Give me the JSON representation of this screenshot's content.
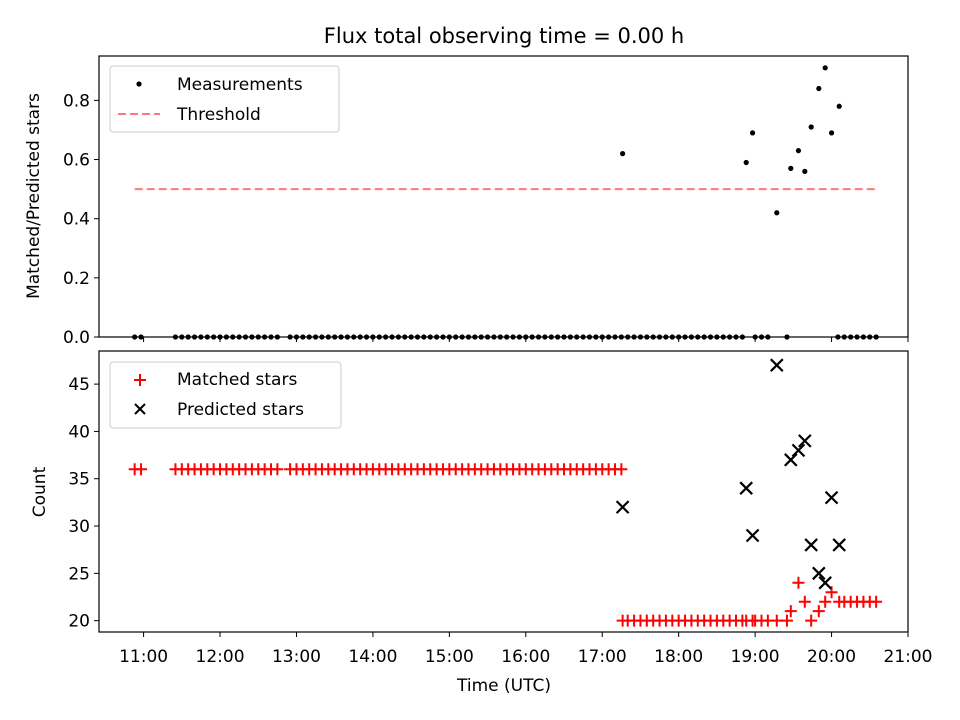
{
  "chart_data": [
    {
      "type": "scatter",
      "title": "Flux total observing time = 0.00 h",
      "xlabel": "",
      "ylabel": "Matched/Predicted stars",
      "xlim": [
        "10:25",
        "21:00"
      ],
      "ylim": [
        0,
        0.95
      ],
      "yticks": [
        "0.0",
        "0.2",
        "0.4",
        "0.6",
        "0.8"
      ],
      "legend_position": "upper-left",
      "grid": false,
      "series": [
        {
          "name": "Measurements",
          "color": "#000000",
          "marker": "dot",
          "zero_times": [
            "10:53",
            "10:58",
            "11:25",
            "11:30",
            "11:35",
            "11:40",
            "11:45",
            "11:50",
            "11:55",
            "12:00",
            "12:05",
            "12:10",
            "12:15",
            "12:20",
            "12:25",
            "12:30",
            "12:35",
            "12:40",
            "12:45",
            "12:55",
            "13:00",
            "13:05",
            "13:10",
            "13:15",
            "13:20",
            "13:25",
            "13:30",
            "13:35",
            "13:40",
            "13:45",
            "13:50",
            "13:55",
            "14:00",
            "14:05",
            "14:10",
            "14:15",
            "14:20",
            "14:25",
            "14:30",
            "14:35",
            "14:40",
            "14:45",
            "14:50",
            "14:55",
            "15:00",
            "15:05",
            "15:10",
            "15:15",
            "15:20",
            "15:25",
            "15:30",
            "15:35",
            "15:40",
            "15:45",
            "15:50",
            "15:55",
            "16:00",
            "16:05",
            "16:10",
            "16:15",
            "16:20",
            "16:25",
            "16:30",
            "16:35",
            "16:40",
            "16:45",
            "16:50",
            "16:55",
            "17:00",
            "17:05",
            "17:10",
            "17:15",
            "17:20",
            "17:25",
            "17:30",
            "17:35",
            "17:40",
            "17:45",
            "17:50",
            "17:55",
            "18:00",
            "18:05",
            "18:10",
            "18:15",
            "18:20",
            "18:25",
            "18:30",
            "18:35",
            "18:40",
            "18:45",
            "18:50",
            "19:00",
            "19:05",
            "19:10",
            "19:25",
            "20:05",
            "20:10",
            "20:15",
            "20:20",
            "20:25",
            "20:30",
            "20:35"
          ],
          "points": [
            {
              "x": "17:16",
              "y": 0.62
            },
            {
              "x": "18:53",
              "y": 0.59
            },
            {
              "x": "18:58",
              "y": 0.69
            },
            {
              "x": "19:17",
              "y": 0.42
            },
            {
              "x": "19:28",
              "y": 0.57
            },
            {
              "x": "19:34",
              "y": 0.63
            },
            {
              "x": "19:39",
              "y": 0.56
            },
            {
              "x": "19:44",
              "y": 0.71
            },
            {
              "x": "19:50",
              "y": 0.84
            },
            {
              "x": "19:55",
              "y": 0.91
            },
            {
              "x": "20:00",
              "y": 0.69
            },
            {
              "x": "20:06",
              "y": 0.78
            }
          ]
        },
        {
          "name": "Threshold",
          "color": "#ff7777",
          "style": "dashed",
          "x": [
            "10:53",
            "20:35"
          ],
          "y": [
            0.5,
            0.5
          ]
        }
      ]
    },
    {
      "type": "scatter",
      "title": "",
      "xlabel": "Time (UTC)",
      "ylabel": "Count",
      "xlim": [
        "10:25",
        "21:00"
      ],
      "ylim": [
        18.8,
        48.5
      ],
      "yticks": [
        "20",
        "25",
        "30",
        "35",
        "40",
        "45"
      ],
      "xticks": [
        "11:00",
        "12:00",
        "13:00",
        "14:00",
        "15:00",
        "16:00",
        "17:00",
        "18:00",
        "19:00",
        "20:00",
        "21:00"
      ],
      "legend_position": "upper-left",
      "grid": false,
      "series": [
        {
          "name": "Matched stars",
          "color": "#ff0000",
          "marker": "plus",
          "value_36_times": [
            "10:53",
            "10:58",
            "11:25",
            "11:30",
            "11:35",
            "11:40",
            "11:45",
            "11:50",
            "11:55",
            "12:00",
            "12:05",
            "12:10",
            "12:15",
            "12:20",
            "12:25",
            "12:30",
            "12:35",
            "12:40",
            "12:45",
            "12:55",
            "13:00",
            "13:05",
            "13:10",
            "13:15",
            "13:20",
            "13:25",
            "13:30",
            "13:35",
            "13:40",
            "13:45",
            "13:50",
            "13:55",
            "14:00",
            "14:05",
            "14:10",
            "14:15",
            "14:20",
            "14:25",
            "14:30",
            "14:35",
            "14:40",
            "14:45",
            "14:50",
            "14:55",
            "15:00",
            "15:05",
            "15:10",
            "15:15",
            "15:20",
            "15:25",
            "15:30",
            "15:35",
            "15:40",
            "15:45",
            "15:50",
            "15:55",
            "16:00",
            "16:05",
            "16:10",
            "16:15",
            "16:20",
            "16:25",
            "16:30",
            "16:35",
            "16:40",
            "16:45",
            "16:50",
            "16:55",
            "17:00",
            "17:05",
            "17:10",
            "17:15"
          ],
          "value_20_times": [
            "17:16",
            "17:20",
            "17:25",
            "17:30",
            "17:35",
            "17:40",
            "17:45",
            "17:50",
            "17:55",
            "18:00",
            "18:05",
            "18:10",
            "18:15",
            "18:20",
            "18:25",
            "18:30",
            "18:35",
            "18:40",
            "18:45",
            "18:50",
            "18:53",
            "18:58",
            "19:00",
            "19:05",
            "19:10",
            "19:17",
            "19:25"
          ],
          "value_22_times": [
            "20:10",
            "20:15",
            "20:20",
            "20:25",
            "20:30",
            "20:35"
          ],
          "points": [
            {
              "x": "19:28",
              "y": 21
            },
            {
              "x": "19:34",
              "y": 24
            },
            {
              "x": "19:39",
              "y": 22
            },
            {
              "x": "19:44",
              "y": 20
            },
            {
              "x": "19:50",
              "y": 21
            },
            {
              "x": "19:55",
              "y": 22
            },
            {
              "x": "20:00",
              "y": 23
            },
            {
              "x": "20:06",
              "y": 22
            }
          ]
        },
        {
          "name": "Predicted stars",
          "color": "#000000",
          "marker": "x",
          "points": [
            {
              "x": "17:16",
              "y": 32
            },
            {
              "x": "18:53",
              "y": 34
            },
            {
              "x": "18:58",
              "y": 29
            },
            {
              "x": "19:17",
              "y": 47
            },
            {
              "x": "19:28",
              "y": 37
            },
            {
              "x": "19:34",
              "y": 38
            },
            {
              "x": "19:39",
              "y": 39
            },
            {
              "x": "19:44",
              "y": 28
            },
            {
              "x": "19:50",
              "y": 25
            },
            {
              "x": "19:55",
              "y": 24
            },
            {
              "x": "20:00",
              "y": 33
            },
            {
              "x": "20:06",
              "y": 28
            }
          ]
        }
      ]
    }
  ]
}
